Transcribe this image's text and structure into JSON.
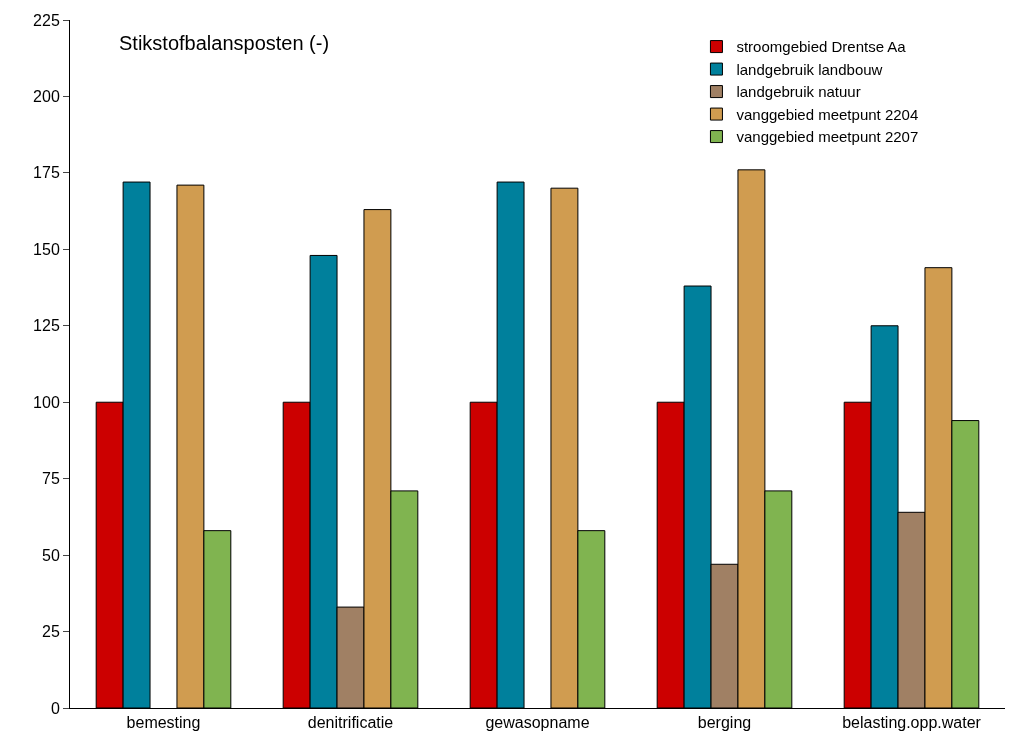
{
  "chart_data": {
    "type": "bar",
    "title": "Stikstofbalansposten (-)",
    "categories": [
      "bemesting",
      "denitrificatie",
      "gewasopname",
      "berging",
      "belasting.opp.water"
    ],
    "series": [
      {
        "name": "stroomgebied Drentse Aa",
        "color": "#cc0000",
        "values": [
          100,
          100,
          100,
          100,
          100
        ]
      },
      {
        "name": "landgebruik landbouw",
        "color": "#00809c",
        "values": [
          172,
          148,
          172,
          138,
          125
        ]
      },
      {
        "name": "landgebruik natuur",
        "color": "#a08064",
        "values": [
          null,
          33,
          null,
          47,
          64
        ]
      },
      {
        "name": "vanggebied meetpunt 2204",
        "color": "#d09c50",
        "values": [
          171,
          163,
          170,
          176,
          144
        ]
      },
      {
        "name": "vanggebied meetpunt 2207",
        "color": "#80b450",
        "values": [
          58,
          71,
          58,
          71,
          94
        ]
      }
    ],
    "ylim": [
      0,
      225
    ],
    "yticks": [
      0,
      25,
      50,
      75,
      100,
      125,
      150,
      175,
      200,
      225
    ],
    "legend": "top right"
  }
}
